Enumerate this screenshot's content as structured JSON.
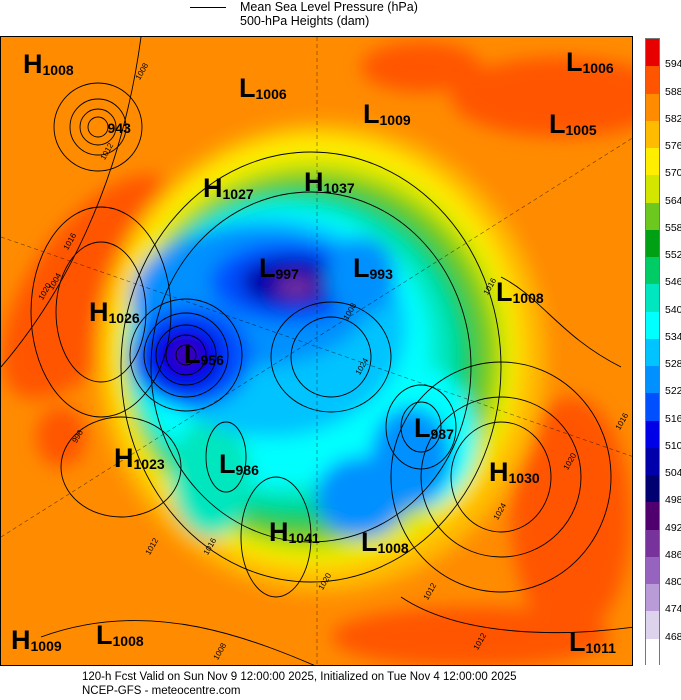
{
  "legend": {
    "line_label": "Mean Sea Level Pressure (hPa)",
    "fill_label": "500-hPa Heights (dam)"
  },
  "colorbar": {
    "levels": [
      "594",
      "588",
      "582",
      "576",
      "570",
      "564",
      "558",
      "552",
      "546",
      "540",
      "534",
      "528",
      "522",
      "516",
      "510",
      "504",
      "498",
      "492",
      "486",
      "480",
      "474",
      "468"
    ],
    "colors": [
      "#e60000",
      "#ff5500",
      "#ff8c00",
      "#ffbb00",
      "#ffee00",
      "#d2e600",
      "#6cc81e",
      "#00a014",
      "#00cc66",
      "#00e6be",
      "#00ffff",
      "#00c3ff",
      "#0090ff",
      "#0050ff",
      "#0000e6",
      "#0000aa",
      "#000070",
      "#50006e",
      "#78329b",
      "#9664be",
      "#b99bd7",
      "#ddd3ec",
      "#ffffff"
    ]
  },
  "centers": [
    {
      "type": "H",
      "value": "1008"
    },
    {
      "type": "L",
      "value": "943"
    },
    {
      "type": "L",
      "value": "1006"
    },
    {
      "type": "L",
      "value": "1009"
    },
    {
      "type": "L",
      "value": "1006"
    },
    {
      "type": "L",
      "value": "1005"
    },
    {
      "type": "H",
      "value": "1027"
    },
    {
      "type": "H",
      "value": "1037"
    },
    {
      "type": "L",
      "value": "997"
    },
    {
      "type": "L",
      "value": "993"
    },
    {
      "type": "L",
      "value": "1008"
    },
    {
      "type": "H",
      "value": "1026"
    },
    {
      "type": "L",
      "value": "956"
    },
    {
      "type": "L",
      "value": "987"
    },
    {
      "type": "H",
      "value": "1023"
    },
    {
      "type": "L",
      "value": "986"
    },
    {
      "type": "H",
      "value": "1030"
    },
    {
      "type": "H",
      "value": "1041"
    },
    {
      "type": "L",
      "value": "1008"
    },
    {
      "type": "H",
      "value": "1009"
    },
    {
      "type": "L",
      "value": "1008"
    },
    {
      "type": "L",
      "value": "1011"
    }
  ],
  "contour_labels": [
    "1008",
    "1012",
    "1016",
    "1020",
    "1004",
    "996",
    "1016",
    "1008",
    "1024",
    "1012",
    "1016",
    "1020",
    "1024",
    "1016",
    "1012",
    "1008",
    "1012",
    "1020"
  ],
  "footer": {
    "line1": "120-h Fcst Valid on Sun Nov  9 12:00:00 2025, Initialized on Tue Nov  4 12:00:00 2025",
    "line2": "NCEP-GFS  - meteocentre.com"
  }
}
